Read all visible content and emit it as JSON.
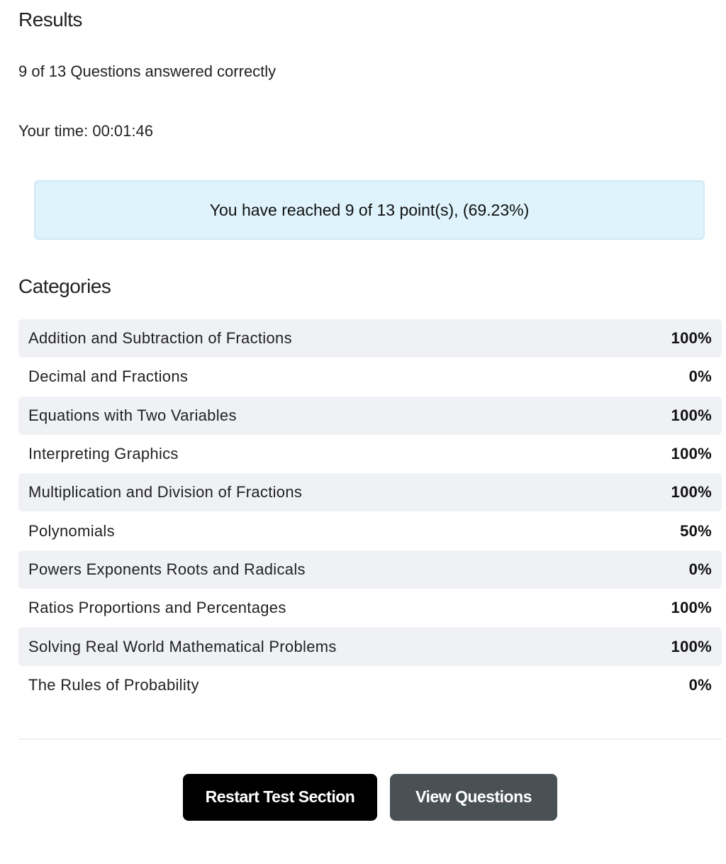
{
  "results": {
    "title": "Results",
    "summary": "9 of 13 Questions answered correctly",
    "time": "Your time: 00:01:46",
    "points": "You have reached 9 of 13 point(s), (69.23%)"
  },
  "categories": {
    "title": "Categories",
    "rows": [
      [
        "Addition and Subtraction of Fractions",
        "100%"
      ],
      [
        "Decimal and Fractions",
        "0%"
      ],
      [
        "Equations with Two Variables",
        "100%"
      ],
      [
        "Interpreting Graphics",
        "100%"
      ],
      [
        "Multiplication and Division of Fractions",
        "100%"
      ],
      [
        "Polynomials",
        "50%"
      ],
      [
        "Powers Exponents Roots and Radicals",
        "0%"
      ],
      [
        "Ratios Proportions and Percentages",
        "100%"
      ],
      [
        "Solving Real World Mathematical Problems",
        "100%"
      ],
      [
        "The Rules of Probability",
        "0%"
      ]
    ]
  },
  "buttons": {
    "restart": "Restart Test Section",
    "view": "View Questions"
  }
}
